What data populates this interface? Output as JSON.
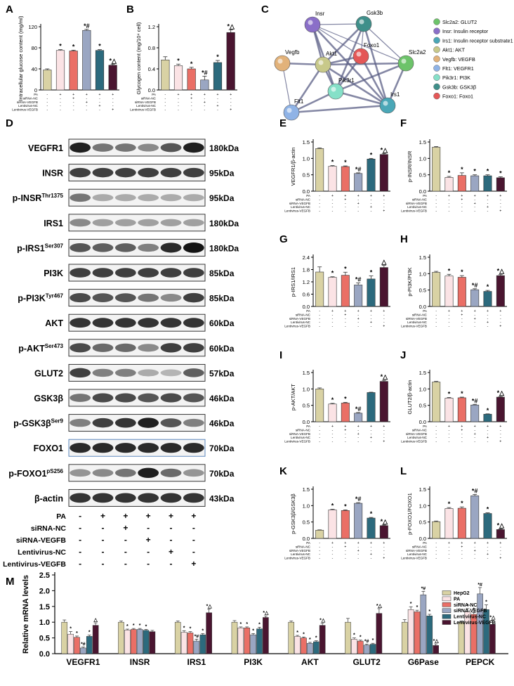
{
  "colors": {
    "hepg2": "#d9d2a4",
    "pa": "#fbe3e5",
    "sirna_nc": "#ea6f66",
    "sirna_vegfb": "#9aa6c2",
    "lentivirus_nc": "#2c6a7d",
    "lentivirus_vegfb": "#4a1530"
  },
  "condition_rows": [
    "PA",
    "siRNA-NC",
    "siRNA-VEGFB",
    "Lentivirus-NC",
    "Lentivirus-VEGFB"
  ],
  "condition_signs": [
    [
      "-",
      "+",
      "+",
      "+",
      "+",
      "+"
    ],
    [
      "-",
      "-",
      "+",
      "-",
      "-",
      "-"
    ],
    [
      "-",
      "-",
      "-",
      "+",
      "-",
      "-"
    ],
    [
      "-",
      "-",
      "-",
      "-",
      "+",
      "-"
    ],
    [
      "-",
      "-",
      "-",
      "-",
      "-",
      "+"
    ]
  ],
  "panels": {
    "A": "A",
    "B": "B",
    "C": "C",
    "D": "D",
    "E": "E",
    "F": "F",
    "G": "G",
    "H": "H",
    "I": "I",
    "J": "J",
    "K": "K",
    "L": "L",
    "M": "M"
  },
  "network": {
    "nodes": [
      "Insr",
      "Gsk3b",
      "Vegfb",
      "Akt1",
      "Foxo1",
      "Slc2a2",
      "Pik3r1",
      "Flt1",
      "Irs1"
    ],
    "legend": [
      {
        "label": "Slc2a2: GLUT2",
        "color": "#6dc36a"
      },
      {
        "label": "Insr: Insulin receptor",
        "color": "#8a6fc8"
      },
      {
        "label": "Irs1: Insulin receptor substrate1",
        "color": "#4aa7b7"
      },
      {
        "label": "Akt1: AKT",
        "color": "#c8c98a"
      },
      {
        "label": "Vegfb: VEGFB",
        "color": "#e2b27a"
      },
      {
        "label": "Flt1: VEGFR1",
        "color": "#8fb3e6"
      },
      {
        "label": "Pik3r1: PI3K",
        "color": "#86e0c8"
      },
      {
        "label": "Gsk3b: GSK3β",
        "color": "#3f8f8a"
      },
      {
        "label": "Foxo1: Foxo1",
        "color": "#e45757"
      }
    ]
  },
  "western": {
    "bands": [
      {
        "name": "VEGFR1",
        "sup": "",
        "kda": "180kDa"
      },
      {
        "name": "INSR",
        "sup": "",
        "kda": "95kDa"
      },
      {
        "name": "p-INSR",
        "sup": "Thr1375",
        "kda": "95kDa"
      },
      {
        "name": "IRS1",
        "sup": "",
        "kda": "180kDa"
      },
      {
        "name": "p-IRS1",
        "sup": "Ser307",
        "kda": "180kDa"
      },
      {
        "name": "PI3K",
        "sup": "",
        "kda": "85kDa"
      },
      {
        "name": "p-PI3K",
        "sup": "Tyr467",
        "kda": "85kDa"
      },
      {
        "name": "AKT",
        "sup": "",
        "kda": "60kDa"
      },
      {
        "name": "p-AKT",
        "sup": "Ser473",
        "kda": "60kDa"
      },
      {
        "name": "GLUT2",
        "sup": "",
        "kda": "57kDa"
      },
      {
        "name": "GSK3β",
        "sup": "",
        "kda": "46kDa"
      },
      {
        "name": "p-GSK3β",
        "sup": "Ser9",
        "kda": "46kDa"
      },
      {
        "name": "FOXO1",
        "sup": "",
        "kda": "70kDa"
      },
      {
        "name": "p-FOXO1",
        "sup": "pS256",
        "kda": "70kDa"
      },
      {
        "name": "β-actin",
        "sup": "",
        "kda": "43kDa"
      }
    ],
    "intensity": [
      [
        0.95,
        0.55,
        0.55,
        0.45,
        0.7,
        0.95
      ],
      [
        0.8,
        0.8,
        0.8,
        0.8,
        0.8,
        0.8
      ],
      [
        0.55,
        0.3,
        0.3,
        0.3,
        0.3,
        0.3
      ],
      [
        0.45,
        0.35,
        0.35,
        0.35,
        0.35,
        0.35
      ],
      [
        0.7,
        0.65,
        0.65,
        0.5,
        0.9,
        1.0
      ],
      [
        0.8,
        0.8,
        0.8,
        0.8,
        0.8,
        0.8
      ],
      [
        0.75,
        0.7,
        0.7,
        0.55,
        0.45,
        0.8
      ],
      [
        0.85,
        0.85,
        0.85,
        0.85,
        0.85,
        0.85
      ],
      [
        0.75,
        0.6,
        0.6,
        0.45,
        0.8,
        0.8
      ],
      [
        0.8,
        0.5,
        0.5,
        0.3,
        0.25,
        0.65
      ],
      [
        0.55,
        0.75,
        0.75,
        0.7,
        0.75,
        0.7
      ],
      [
        0.5,
        0.8,
        0.85,
        0.95,
        0.7,
        0.5
      ],
      [
        0.9,
        0.9,
        0.9,
        0.9,
        0.9,
        0.9
      ],
      [
        0.4,
        0.45,
        0.55,
        0.95,
        0.6,
        0.4
      ],
      [
        0.85,
        0.85,
        0.85,
        0.85,
        0.85,
        0.85
      ]
    ]
  },
  "chart_data": [
    {
      "id": "A",
      "type": "bar",
      "ylabel": "Intracellular glucose content (mg/ml)",
      "ylim": [
        0,
        120
      ],
      "yticks": [
        0,
        40,
        80,
        120
      ],
      "values": [
        38,
        75,
        74,
        113,
        75,
        47
      ],
      "errors": [
        2,
        1.5,
        1.5,
        2,
        1.5,
        2
      ],
      "annotations": [
        "",
        "*",
        "*",
        "*#",
        "*",
        "*△"
      ]
    },
    {
      "id": "B",
      "type": "bar",
      "ylabel": "Glycogen content (mg/10⁴ cell)",
      "ylim": [
        0,
        1.2
      ],
      "yticks": [
        0.0,
        0.4,
        0.8,
        1.2
      ],
      "values": [
        0.57,
        0.46,
        0.4,
        0.19,
        0.52,
        1.09
      ],
      "errors": [
        0.06,
        0.03,
        0.03,
        0.07,
        0.04,
        0.05
      ],
      "annotations": [
        "",
        "*",
        "*",
        "*#",
        "*",
        "*△"
      ]
    },
    {
      "id": "E",
      "type": "bar",
      "ylabel": "VEGFR1/β-actin",
      "ylim": [
        0,
        1.5
      ],
      "yticks": [
        0.0,
        0.5,
        1.0,
        1.5
      ],
      "values": [
        1.3,
        0.76,
        0.75,
        0.54,
        0.98,
        1.12
      ],
      "errors": [
        0.02,
        0.02,
        0.02,
        0.02,
        0.02,
        0.03
      ],
      "annotations": [
        "",
        "*",
        "*",
        "*#",
        "*",
        "*△"
      ]
    },
    {
      "id": "F",
      "type": "bar",
      "ylabel": "p-INSR/INSR",
      "ylim": [
        0,
        1.5
      ],
      "yticks": [
        0.0,
        0.5,
        1.0,
        1.5
      ],
      "values": [
        1.34,
        0.42,
        0.48,
        0.47,
        0.47,
        0.41
      ],
      "errors": [
        0.02,
        0.03,
        0.08,
        0.03,
        0.03,
        0.03
      ],
      "annotations": [
        "",
        "*",
        "*",
        "*",
        "*",
        "*"
      ]
    },
    {
      "id": "G",
      "type": "bar",
      "ylabel": "p-IRS1/IRS1",
      "ylim": [
        0,
        2.4
      ],
      "yticks": [
        0.0,
        0.6,
        1.2,
        1.8,
        2.4
      ],
      "values": [
        1.68,
        1.42,
        1.52,
        1.05,
        1.34,
        1.9
      ],
      "errors": [
        0.25,
        0.03,
        0.15,
        0.1,
        0.15,
        0.1
      ],
      "annotations": [
        "",
        "*",
        "*",
        "*#",
        "*",
        "△"
      ]
    },
    {
      "id": "H",
      "type": "bar",
      "ylabel": "p-PI3K/PI3K",
      "ylim": [
        0,
        1.5
      ],
      "yticks": [
        0.0,
        0.5,
        1.0,
        1.5
      ],
      "values": [
        1.04,
        0.93,
        0.89,
        0.51,
        0.46,
        0.94
      ],
      "errors": [
        0.03,
        0.05,
        0.05,
        0.03,
        0.03,
        0.03
      ],
      "annotations": [
        "",
        "*",
        "*",
        "*#",
        "*",
        "*△"
      ]
    },
    {
      "id": "I",
      "type": "bar",
      "ylabel": "p-AKT/AKT",
      "ylim": [
        0,
        1.5
      ],
      "yticks": [
        0.0,
        0.5,
        1.0,
        1.5
      ],
      "values": [
        1.0,
        0.54,
        0.57,
        0.26,
        0.89,
        1.23
      ],
      "errors": [
        0.03,
        0.02,
        0.02,
        0.02,
        0.01,
        0.03
      ],
      "annotations": [
        "",
        "*",
        "*",
        "*#",
        "",
        "*△"
      ]
    },
    {
      "id": "J",
      "type": "bar",
      "ylabel": "GLUT2/β-actin",
      "ylim": [
        0,
        1.5
      ],
      "yticks": [
        0.0,
        0.5,
        1.0,
        1.5
      ],
      "values": [
        1.21,
        0.72,
        0.73,
        0.51,
        0.23,
        0.75
      ],
      "errors": [
        0.02,
        0.02,
        0.02,
        0.02,
        0.01,
        0.02
      ],
      "annotations": [
        "",
        "*",
        "*",
        "*#",
        "*",
        "*△"
      ]
    },
    {
      "id": "K",
      "type": "bar",
      "ylabel": "p-GSK3β/GSK3β",
      "ylim": [
        0,
        1.5
      ],
      "yticks": [
        0.0,
        0.5,
        1.0,
        1.5
      ],
      "values": [
        0.25,
        0.87,
        0.85,
        1.07,
        0.62,
        0.39
      ],
      "errors": [
        0.01,
        0.02,
        0.02,
        0.02,
        0.02,
        0.02
      ],
      "annotations": [
        "",
        "*",
        "*",
        "*#",
        "*",
        "*△"
      ]
    },
    {
      "id": "L",
      "type": "bar",
      "ylabel": "p-FOXO1/FOXO1",
      "ylim": [
        0,
        1.5
      ],
      "yticks": [
        0.0,
        0.5,
        1.0,
        1.5
      ],
      "values": [
        0.51,
        0.91,
        0.92,
        1.3,
        0.76,
        0.27
      ],
      "errors": [
        0.02,
        0.03,
        0.04,
        0.04,
        0.02,
        0.02
      ],
      "annotations": [
        "",
        "*",
        "*",
        "*#",
        "*",
        "*△"
      ]
    },
    {
      "id": "M",
      "type": "bar",
      "ylabel": "Relative mRNA levels",
      "ylim": [
        0,
        2.5
      ],
      "yticks": [
        0.0,
        0.5,
        1.0,
        1.5,
        2.0,
        2.5
      ],
      "categories": [
        "VEGFR1",
        "INSR",
        "IRS1",
        "PI3K",
        "AKT",
        "GLUT2",
        "G6Pase",
        "PEPCK"
      ],
      "legend": [
        "HepG2",
        "PA",
        "siRNA-NC",
        "siRNA-VEGFB",
        "Lentivirus-NC",
        "Lentivirus-VEGFB"
      ],
      "series": [
        {
          "name": "HepG2",
          "values": [
            1.0,
            1.0,
            1.0,
            1.0,
            1.0,
            1.0,
            1.0,
            1.0
          ],
          "errors": [
            0.07,
            0.04,
            0.04,
            0.05,
            0.04,
            0.12,
            0.08,
            0.04
          ],
          "annotations": [
            "",
            "",
            "",
            "",
            "",
            "",
            "",
            ""
          ]
        },
        {
          "name": "PA",
          "values": [
            0.62,
            0.75,
            0.68,
            0.82,
            0.55,
            0.46,
            1.4,
            1.33
          ],
          "errors": [
            0.08,
            0.03,
            0.05,
            0.03,
            0.03,
            0.04,
            0.09,
            0.1
          ],
          "annotations": [
            "*",
            "*",
            "*",
            "*",
            "*",
            "*",
            "*",
            "*"
          ]
        },
        {
          "name": "siRNA-NC",
          "values": [
            0.52,
            0.77,
            0.66,
            0.82,
            0.5,
            0.4,
            1.33,
            1.25
          ],
          "errors": [
            0.04,
            0.03,
            0.04,
            0.03,
            0.03,
            0.03,
            0.05,
            0.06
          ],
          "annotations": [
            "*",
            "*",
            "*",
            "*",
            "*",
            "*",
            "*",
            "*"
          ]
        },
        {
          "name": "siRNA-VEGFB",
          "values": [
            0.18,
            0.77,
            0.4,
            0.6,
            0.33,
            0.27,
            1.87,
            1.9
          ],
          "errors": [
            0.03,
            0.03,
            0.06,
            0.04,
            0.03,
            0.03,
            0.11,
            0.2
          ],
          "annotations": [
            "*#",
            "*",
            "*#",
            "*",
            "*",
            "*#",
            "*#",
            "*#"
          ]
        },
        {
          "name": "Lentivirus-NC",
          "values": [
            0.55,
            0.74,
            0.6,
            0.79,
            0.38,
            0.3,
            1.2,
            1.4
          ],
          "errors": [
            0.04,
            0.03,
            0.04,
            0.05,
            0.03,
            0.03,
            0.05,
            0.15
          ],
          "annotations": [
            "*",
            "*",
            "*",
            "*",
            "*",
            "*",
            "*",
            "*"
          ]
        },
        {
          "name": "Lentivirus-VEGFB",
          "values": [
            0.9,
            0.7,
            1.3,
            1.15,
            0.9,
            1.28,
            0.26,
            0.93
          ],
          "errors": [
            0.08,
            0.04,
            0.12,
            0.05,
            0.07,
            0.15,
            0.05,
            0.13
          ],
          "annotations": [
            "△",
            "",
            "*△",
            "*△",
            "*△",
            "*△",
            "*△",
            "*△"
          ]
        }
      ]
    }
  ]
}
